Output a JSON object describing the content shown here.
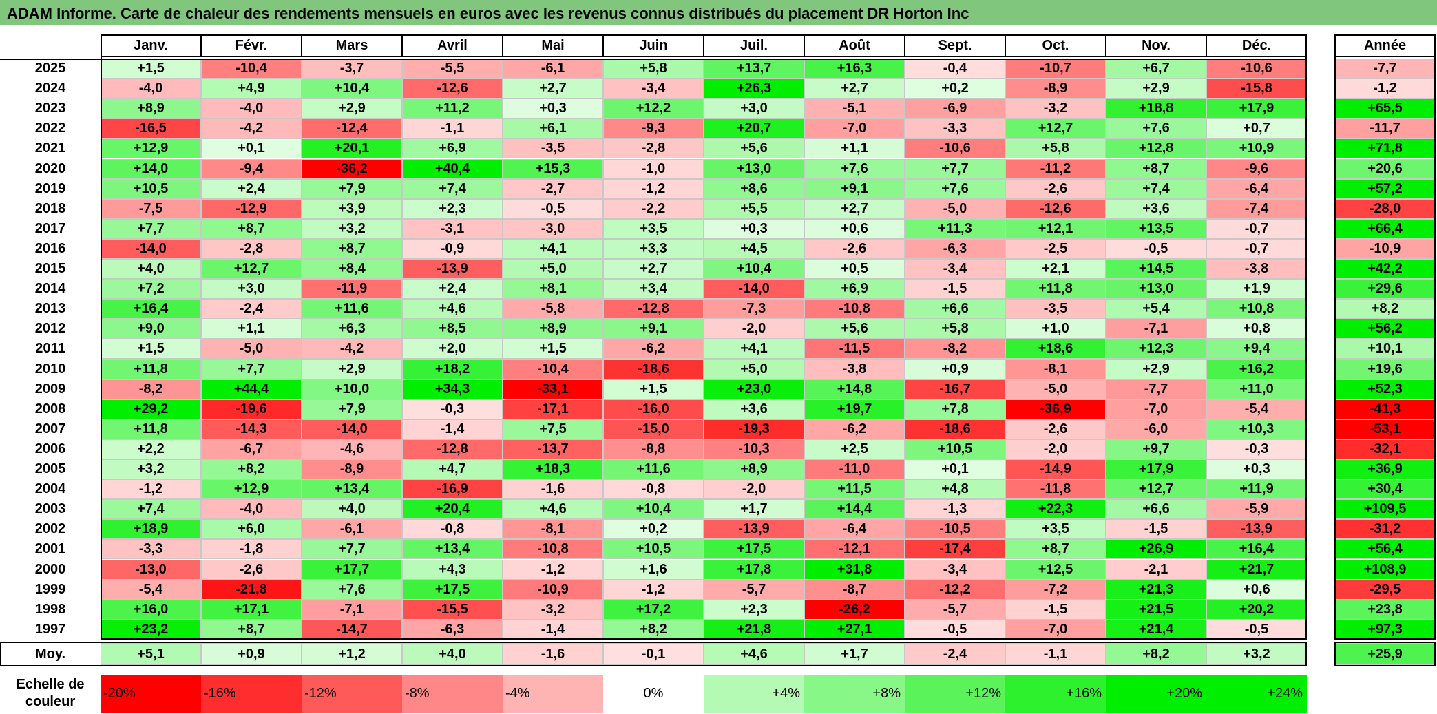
{
  "title": "ADAM Informe. Carte de chaleur des rendements mensuels en euros avec les revenus connus distribués du placement DR Horton Inc",
  "chart_data": {
    "type": "heatmap",
    "columns": [
      "Janv.",
      "Févr.",
      "Mars",
      "Avril",
      "Mai",
      "Juin",
      "Juil.",
      "Août",
      "Sept.",
      "Oct.",
      "Nov.",
      "Déc."
    ],
    "year_header": "Année",
    "rows": [
      {
        "year": "2025",
        "values": [
          "+1,5",
          "-10,4",
          "-3,7",
          "-5,5",
          "-6,1",
          "+5,8",
          "+13,7",
          "+16,3",
          "-0,4",
          "-10,7",
          "+6,7",
          "-10,6"
        ],
        "annual": "-7,7"
      },
      {
        "year": "2024",
        "values": [
          "-4,0",
          "+4,9",
          "+10,4",
          "-12,6",
          "+2,7",
          "-3,4",
          "+26,3",
          "+2,7",
          "+0,2",
          "-8,9",
          "+2,9",
          "-15,8"
        ],
        "annual": "-1,2"
      },
      {
        "year": "2023",
        "values": [
          "+8,9",
          "-4,0",
          "+2,9",
          "+11,2",
          "+0,3",
          "+12,2",
          "+3,0",
          "-5,1",
          "-6,9",
          "-3,2",
          "+18,8",
          "+17,9"
        ],
        "annual": "+65,5"
      },
      {
        "year": "2022",
        "values": [
          "-16,5",
          "-4,2",
          "-12,4",
          "-1,1",
          "+6,1",
          "-9,3",
          "+20,7",
          "-7,0",
          "-3,3",
          "+12,7",
          "+7,6",
          "+0,7"
        ],
        "annual": "-11,7"
      },
      {
        "year": "2021",
        "values": [
          "+12,9",
          "+0,1",
          "+20,1",
          "+6,9",
          "-3,5",
          "-2,8",
          "+5,6",
          "+1,1",
          "-10,6",
          "+5,8",
          "+12,8",
          "+10,9"
        ],
        "annual": "+71,8"
      },
      {
        "year": "2020",
        "values": [
          "+14,0",
          "-9,4",
          "-36,2",
          "+40,4",
          "+15,3",
          "-1,0",
          "+13,0",
          "+7,6",
          "+7,7",
          "-11,2",
          "+8,7",
          "-9,6"
        ],
        "annual": "+20,6"
      },
      {
        "year": "2019",
        "values": [
          "+10,5",
          "+2,4",
          "+7,9",
          "+7,4",
          "-2,7",
          "-1,2",
          "+8,6",
          "+9,1",
          "+7,6",
          "-2,6",
          "+7,4",
          "-6,4"
        ],
        "annual": "+57,2"
      },
      {
        "year": "2018",
        "values": [
          "-7,5",
          "-12,9",
          "+3,9",
          "+2,3",
          "-0,5",
          "-2,2",
          "+5,5",
          "+2,7",
          "-5,0",
          "-12,6",
          "+3,6",
          "-7,4"
        ],
        "annual": "-28,0"
      },
      {
        "year": "2017",
        "values": [
          "+7,7",
          "+8,7",
          "+3,2",
          "-3,1",
          "-3,0",
          "+3,5",
          "+0,3",
          "+0,6",
          "+11,3",
          "+12,1",
          "+13,5",
          "-0,7"
        ],
        "annual": "+66,4"
      },
      {
        "year": "2016",
        "values": [
          "-14,0",
          "-2,8",
          "+8,7",
          "-0,9",
          "+4,1",
          "+3,3",
          "+4,5",
          "-2,6",
          "-6,3",
          "-2,5",
          "-0,5",
          "-0,7"
        ],
        "annual": "-10,9"
      },
      {
        "year": "2015",
        "values": [
          "+4,0",
          "+12,7",
          "+8,4",
          "-13,9",
          "+5,0",
          "+2,7",
          "+10,4",
          "+0,5",
          "-3,4",
          "+2,1",
          "+14,5",
          "-3,8"
        ],
        "annual": "+42,2"
      },
      {
        "year": "2014",
        "values": [
          "+7,2",
          "+3,0",
          "-11,9",
          "+2,4",
          "+8,1",
          "+3,4",
          "-14,0",
          "+6,9",
          "-1,5",
          "+11,8",
          "+13,0",
          "+1,9"
        ],
        "annual": "+29,6"
      },
      {
        "year": "2013",
        "values": [
          "+16,4",
          "-2,4",
          "+11,6",
          "+4,6",
          "-5,8",
          "-12,8",
          "-7,3",
          "-10,8",
          "+6,6",
          "-3,5",
          "+5,4",
          "+10,8"
        ],
        "annual": "+8,2"
      },
      {
        "year": "2012",
        "values": [
          "+9,0",
          "+1,1",
          "+6,3",
          "+8,5",
          "+8,9",
          "+9,1",
          "-2,0",
          "+5,6",
          "+5,8",
          "+1,0",
          "-7,1",
          "+0,8"
        ],
        "annual": "+56,2"
      },
      {
        "year": "2011",
        "values": [
          "+1,5",
          "-5,0",
          "-4,2",
          "+2,0",
          "+1,5",
          "-6,2",
          "+4,1",
          "-11,5",
          "-8,2",
          "+18,6",
          "+12,3",
          "+9,4"
        ],
        "annual": "+10,1"
      },
      {
        "year": "2010",
        "values": [
          "+11,8",
          "+7,7",
          "+2,9",
          "+18,2",
          "-10,4",
          "-18,6",
          "+5,0",
          "-3,8",
          "+0,9",
          "-8,1",
          "+2,9",
          "+16,2"
        ],
        "annual": "+19,6"
      },
      {
        "year": "2009",
        "values": [
          "-8,2",
          "+44,4",
          "+10,0",
          "+34,3",
          "-33,1",
          "+1,5",
          "+23,0",
          "+14,8",
          "-16,7",
          "-5,0",
          "-7,7",
          "+11,0"
        ],
        "annual": "+52,3"
      },
      {
        "year": "2008",
        "values": [
          "+29,2",
          "-19,6",
          "+7,9",
          "-0,3",
          "-17,1",
          "-16,0",
          "+3,6",
          "+19,7",
          "+7,8",
          "-36,9",
          "-7,0",
          "-5,4"
        ],
        "annual": "-41,3"
      },
      {
        "year": "2007",
        "values": [
          "+11,8",
          "-14,3",
          "-14,0",
          "-1,4",
          "+7,5",
          "-15,0",
          "-19,3",
          "-6,2",
          "-18,6",
          "-2,6",
          "-6,0",
          "+10,3"
        ],
        "annual": "-53,1"
      },
      {
        "year": "2006",
        "values": [
          "+2,2",
          "-6,7",
          "-4,6",
          "-12,8",
          "-13,7",
          "-8,8",
          "-10,3",
          "+2,5",
          "+10,5",
          "-2,0",
          "+9,7",
          "-0,3"
        ],
        "annual": "-32,1"
      },
      {
        "year": "2005",
        "values": [
          "+3,2",
          "+8,2",
          "-8,9",
          "+4,7",
          "+18,3",
          "+11,6",
          "+8,9",
          "-11,0",
          "+0,1",
          "-14,9",
          "+17,9",
          "+0,3"
        ],
        "annual": "+36,9"
      },
      {
        "year": "2004",
        "values": [
          "-1,2",
          "+12,9",
          "+13,4",
          "-16,9",
          "-1,6",
          "-0,8",
          "-2,0",
          "+11,5",
          "+4,8",
          "-11,8",
          "+12,7",
          "+11,9"
        ],
        "annual": "+30,4"
      },
      {
        "year": "2003",
        "values": [
          "+7,4",
          "-4,0",
          "+4,0",
          "+20,4",
          "+4,6",
          "+10,4",
          "+1,7",
          "+14,4",
          "-1,3",
          "+22,3",
          "+6,6",
          "-5,9"
        ],
        "annual": "+109,5"
      },
      {
        "year": "2002",
        "values": [
          "+18,9",
          "+6,0",
          "-6,1",
          "-0,8",
          "-8,1",
          "+0,2",
          "-13,9",
          "-6,4",
          "-10,5",
          "+3,5",
          "-1,5",
          "-13,9"
        ],
        "annual": "-31,2"
      },
      {
        "year": "2001",
        "values": [
          "-3,3",
          "-1,8",
          "+7,7",
          "+13,4",
          "-10,8",
          "+10,5",
          "+17,5",
          "-12,1",
          "-17,4",
          "+8,7",
          "+26,9",
          "+16,4"
        ],
        "annual": "+56,4"
      },
      {
        "year": "2000",
        "values": [
          "-13,0",
          "-2,6",
          "+17,7",
          "+4,3",
          "-1,2",
          "+1,6",
          "+17,8",
          "+31,8",
          "-3,4",
          "+12,5",
          "-2,1",
          "+21,7"
        ],
        "annual": "+108,9"
      },
      {
        "year": "1999",
        "values": [
          "-5,4",
          "-21,8",
          "+7,6",
          "+17,5",
          "-10,9",
          "-1,2",
          "-5,7",
          "-8,7",
          "-12,2",
          "-7,2",
          "+21,3",
          "+0,6"
        ],
        "annual": "-29,5"
      },
      {
        "year": "1998",
        "values": [
          "+16,0",
          "+17,1",
          "-7,1",
          "-15,5",
          "-3,2",
          "+17,2",
          "+2,3",
          "-26,2",
          "-5,7",
          "-1,5",
          "+21,5",
          "+20,2"
        ],
        "annual": "+23,8"
      },
      {
        "year": "1997",
        "values": [
          "+23,2",
          "+8,7",
          "-14,7",
          "-6,3",
          "-1,4",
          "+8,2",
          "+21,8",
          "+27,1",
          "-0,5",
          "-7,0",
          "+21,4",
          "-0,5"
        ],
        "annual": "+97,3"
      }
    ],
    "average": {
      "label": "Moy.",
      "values": [
        "+5,1",
        "+0,9",
        "+1,2",
        "+4,0",
        "-1,6",
        "-0,1",
        "+4,6",
        "+1,7",
        "-2,4",
        "-1,1",
        "+8,2",
        "+3,2"
      ],
      "annual": "+25,9"
    },
    "color_scale": {
      "label": "Echelle de couleur",
      "steps": [
        "-20%",
        "-16%",
        "-12%",
        "-8%",
        "-4%",
        "0%",
        "+4%",
        "+8%",
        "+12%",
        "+16%",
        "+20%",
        "+24%"
      ],
      "negative_color": "#ff0000",
      "neutral_color": "#ffffff",
      "positive_color": "#00ee00"
    }
  }
}
